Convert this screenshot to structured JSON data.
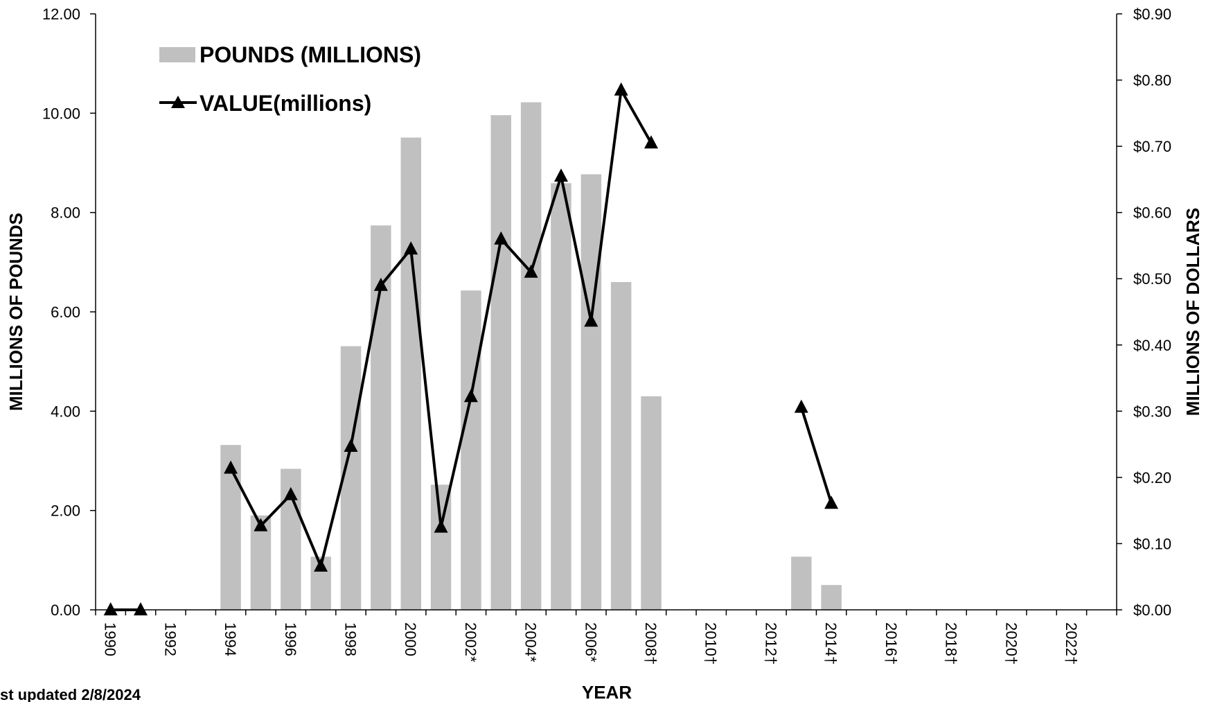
{
  "chart_data": {
    "type": "bar",
    "xlabel": "YEAR",
    "ylabel_left": "MILLIONS OF POUNDS",
    "ylabel_right": "MILLIONS OF DOLLARS",
    "ylim_left": [
      0,
      12
    ],
    "ylim_right": [
      0,
      0.9
    ],
    "grid": false,
    "legend_placement": "top-left",
    "colors": {
      "bar": "#c0c0c0",
      "line": "#000000"
    },
    "left_ticks": [
      "0.00",
      "2.00",
      "4.00",
      "6.00",
      "8.00",
      "10.00",
      "12.00"
    ],
    "right_ticks": [
      "$0.00",
      "$0.10",
      "$0.20",
      "$0.30",
      "$0.40",
      "$0.50",
      "$0.60",
      "$0.70",
      "$0.80",
      "$0.90"
    ],
    "x_tick_labels": [
      "1990",
      "1992",
      "1994",
      "1996",
      "1998",
      "2000",
      "2002*",
      "2004*",
      "2006*",
      "2008†",
      "2010†",
      "2012†",
      "2014†",
      "2016†",
      "2018†",
      "2020†",
      "2022†"
    ],
    "years": [
      1990,
      1991,
      1992,
      1993,
      1994,
      1995,
      1996,
      1997,
      1998,
      1999,
      2000,
      2001,
      2002,
      2003,
      2004,
      2005,
      2006,
      2007,
      2008,
      2009,
      2010,
      2011,
      2012,
      2013,
      2014,
      2015,
      2016,
      2017,
      2018,
      2019,
      2020,
      2021,
      2022,
      2023
    ],
    "series": [
      {
        "name": "POUNDS (MILLIONS)",
        "kind": "bar",
        "axis": "left",
        "values": [
          null,
          null,
          null,
          null,
          3.32,
          1.9,
          2.84,
          1.07,
          5.31,
          7.74,
          9.51,
          2.52,
          6.43,
          9.96,
          10.22,
          8.59,
          8.77,
          6.6,
          4.3,
          null,
          null,
          null,
          null,
          1.07,
          0.5,
          null,
          null,
          null,
          null,
          null,
          null,
          null,
          null,
          null
        ]
      },
      {
        "name": "VALUE(millions)",
        "kind": "line",
        "marker": "triangle",
        "axis": "right",
        "values": [
          0.0,
          0.0,
          null,
          null,
          0.214,
          0.127,
          0.174,
          0.066,
          0.247,
          0.49,
          0.545,
          0.125,
          0.322,
          0.56,
          0.51,
          0.655,
          0.436,
          0.785,
          0.705,
          null,
          null,
          null,
          null,
          0.306,
          0.161,
          null,
          null,
          null,
          null,
          null,
          null,
          null,
          null,
          null
        ]
      }
    ],
    "footnote": "st updated 2/8/2024"
  }
}
